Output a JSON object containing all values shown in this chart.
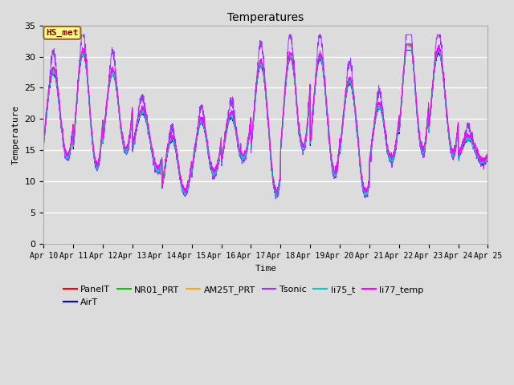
{
  "title": "Temperatures",
  "xlabel": "Time",
  "ylabel": "Temperature",
  "ylim": [
    0,
    35
  ],
  "yticks": [
    0,
    5,
    10,
    15,
    20,
    25,
    30,
    35
  ],
  "xtick_labels": [
    "Apr 10",
    "Apr 11",
    "Apr 12",
    "Apr 13",
    "Apr 14",
    "Apr 15",
    "Apr 16",
    "Apr 17",
    "Apr 18",
    "Apr 19",
    "Apr 20",
    "Apr 21",
    "Apr 22",
    "Apr 23",
    "Apr 24",
    "Apr 25"
  ],
  "annotation_text": "HS_met",
  "bg_color": "#dcdcdc",
  "series": [
    {
      "name": "PanelT",
      "color": "#ff0000"
    },
    {
      "name": "AirT",
      "color": "#0000cc"
    },
    {
      "name": "NR01_PRT",
      "color": "#00cc00"
    },
    {
      "name": "AM25T_PRT",
      "color": "#ffaa00"
    },
    {
      "name": "Tsonic",
      "color": "#9933ff"
    },
    {
      "name": "li75_t",
      "color": "#00cccc"
    },
    {
      "name": "li77_temp",
      "color": "#ff00ff"
    }
  ]
}
